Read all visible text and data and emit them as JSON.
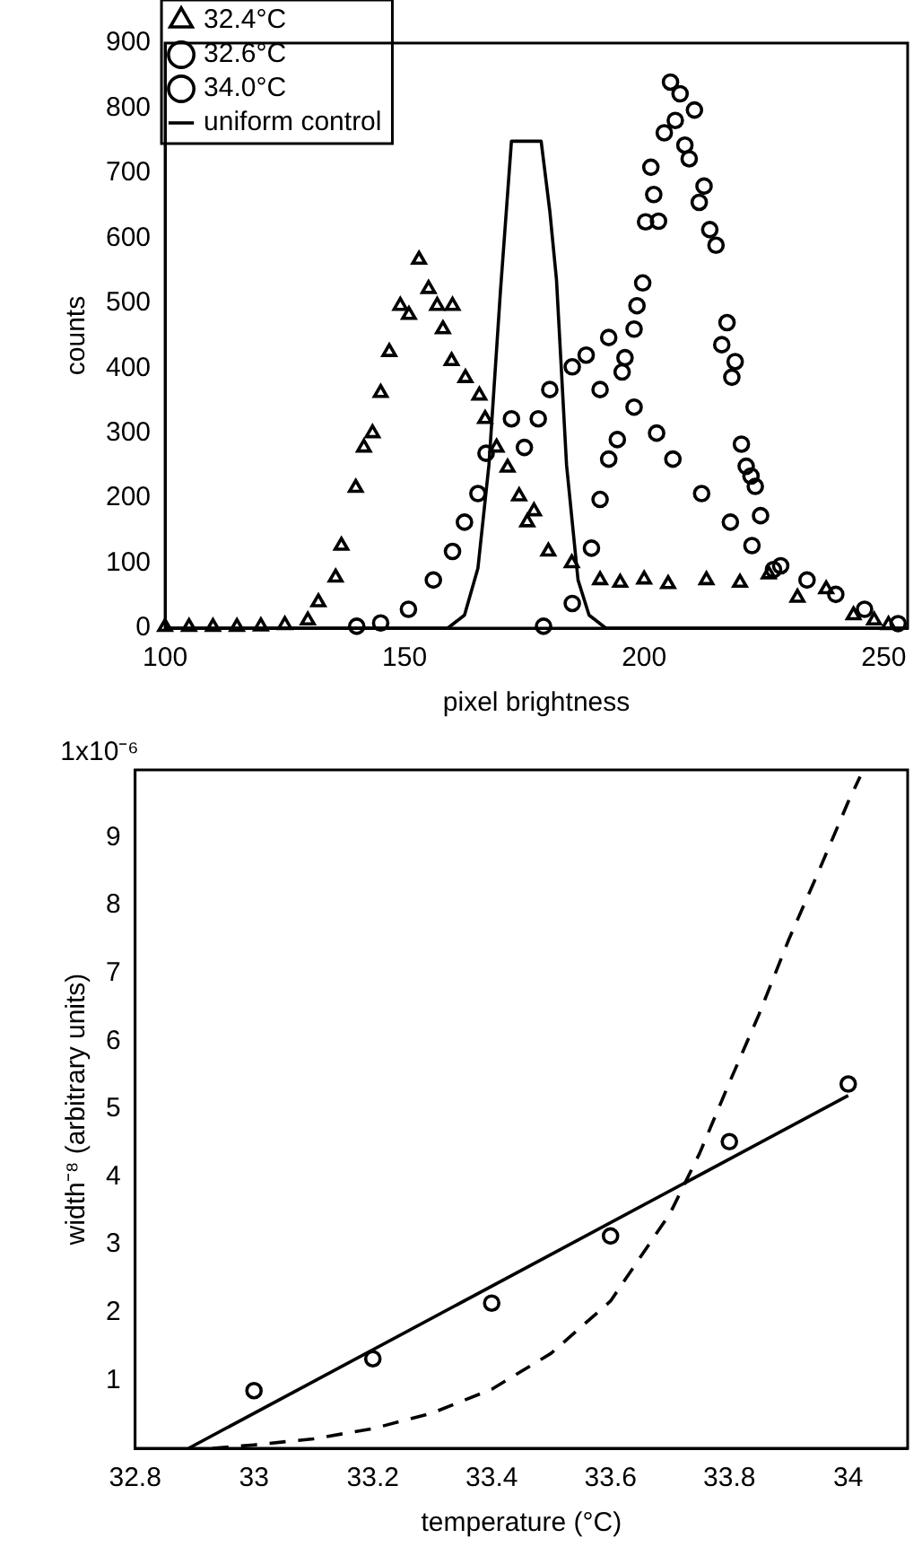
{
  "chart_data": [
    {
      "type": "scatter",
      "xlabel": "pixel brightness",
      "ylabel": "counts",
      "xlim": [
        100,
        255
      ],
      "ylim": [
        0,
        900
      ],
      "xticks": [
        100,
        150,
        200,
        250
      ],
      "yticks": [
        0,
        100,
        200,
        300,
        400,
        500,
        600,
        700,
        800,
        900
      ],
      "grid": false,
      "legend": "top left",
      "series": [
        {
          "name": "32.4°C",
          "color": "#000000",
          "marker": "triangle",
          "x": [
            100,
            105,
            110,
            115,
            120,
            125,
            129.8,
            132,
            135.6,
            136.8,
            139.8,
            141.5,
            143.3,
            145,
            146.8,
            149.1,
            150.9,
            153,
            155,
            156.8,
            158,
            160,
            159.8,
            162.7,
            165.6,
            166.8,
            169.2,
            171.5,
            173.9,
            175.6,
            177,
            180,
            184.9,
            190.8,
            195,
            200,
            205,
            213,
            220,
            226,
            232,
            238,
            243.7,
            248,
            251
          ],
          "values": [
            2,
            2,
            2,
            2,
            3,
            5,
            12,
            40,
            78,
            127,
            216,
            278,
            300,
            362,
            425,
            496,
            482,
            567,
            522,
            496,
            460,
            496,
            411,
            385,
            358,
            322,
            278,
            247,
            203,
            163,
            180,
            118,
            100,
            74,
            70,
            75,
            68,
            74,
            70,
            83,
            47,
            60,
            20,
            12,
            5
          ]
        },
        {
          "name": "32.6°C",
          "color": "#000000",
          "marker": "circle",
          "x": [
            140,
            145,
            150.8,
            156,
            160,
            162.5,
            165.3,
            167,
            172.3,
            175,
            177.9,
            180.3,
            185,
            187.9,
            190.8,
            192.6,
            195.4,
            197.9,
            202.6,
            206,
            212,
            218,
            222.5,
            228.5,
            234,
            240,
            246,
            253
          ],
          "values": [
            3,
            8,
            29,
            74,
            118,
            163,
            207,
            269,
            322,
            278,
            322,
            367,
            402,
            420,
            367,
            447,
            394,
            340,
            300,
            260,
            207,
            163,
            127,
            96,
            74,
            52,
            29,
            7
          ]
        },
        {
          "name": "34.0°C",
          "color": "#000000",
          "marker": "circle",
          "x": [
            179,
            185,
            189,
            190.8,
            192.6,
            194.4,
            196,
            197.9,
            198.5,
            199.7,
            200.3,
            201.4,
            202,
            203,
            204.2,
            205.5,
            206.5,
            207.5,
            208.5,
            209.4,
            210.5,
            211.5,
            212.5,
            213.7,
            215,
            216.2,
            217.3,
            218.3,
            219,
            220.3,
            221.3,
            222.3,
            223.2,
            224.3,
            227
          ],
          "values": [
            3,
            38,
            123,
            198,
            260,
            290,
            416,
            460,
            496,
            531,
            625,
            709,
            667,
            626,
            762,
            840,
            781,
            822,
            743,
            722,
            797,
            655,
            680,
            613,
            589,
            436,
            470,
            386,
            410,
            283,
            249,
            234,
            218,
            173,
            90
          ]
        },
        {
          "name": "uniform control",
          "color": "#000000",
          "type": "line",
          "marker": "none",
          "x": [
            100,
            159,
            162.5,
            165.3,
            167.6,
            170,
            172.3,
            176.8,
            178.5,
            180.3,
            181.7,
            183.8,
            186.2,
            188.5,
            192,
            255
          ],
          "values": [
            0,
            0,
            20,
            92,
            251,
            518,
            749,
            749,
            749,
            642,
            536,
            251,
            74,
            20,
            0,
            0
          ]
        }
      ]
    },
    {
      "type": "scatter",
      "xlabel": "temperature (°C)",
      "ylabel": "width⁻⁸ (arbitrary units)",
      "xlim": [
        32.8,
        34.1
      ],
      "ylim": [
        0,
        10
      ],
      "xticks": [
        32.8,
        33,
        33.2,
        33.4,
        33.6,
        33.8,
        34
      ],
      "yticks": [
        1,
        2,
        3,
        4,
        5,
        6,
        7,
        8,
        9
      ],
      "grid": false,
      "annotations": [
        "1x10⁻⁶"
      ],
      "series": [
        {
          "color": "#000000",
          "marker": "circle",
          "x": [
            33,
            33.2,
            33.4,
            33.6,
            33.8,
            34
          ],
          "values": [
            0.85,
            1.32,
            2.14,
            3.13,
            4.52,
            5.37
          ]
        },
        {
          "color": "#000000",
          "type": "line",
          "marker": "none",
          "x": [
            32.89,
            34
          ],
          "values": [
            0,
            5.2
          ]
        },
        {
          "color": "#000000",
          "type": "line",
          "marker": "none",
          "line_style": "dashed",
          "x": [
            32.93,
            33,
            33.1,
            33.2,
            33.3,
            33.4,
            33.5,
            33.6,
            33.7,
            33.75,
            33.8,
            33.85,
            33.9,
            33.95,
            34,
            34.02
          ],
          "values": [
            0,
            0.05,
            0.14,
            0.29,
            0.52,
            0.87,
            1.4,
            2.17,
            3.46,
            4.35,
            5.39,
            6.4,
            7.5,
            8.5,
            9.53,
            9.9
          ]
        }
      ]
    }
  ]
}
